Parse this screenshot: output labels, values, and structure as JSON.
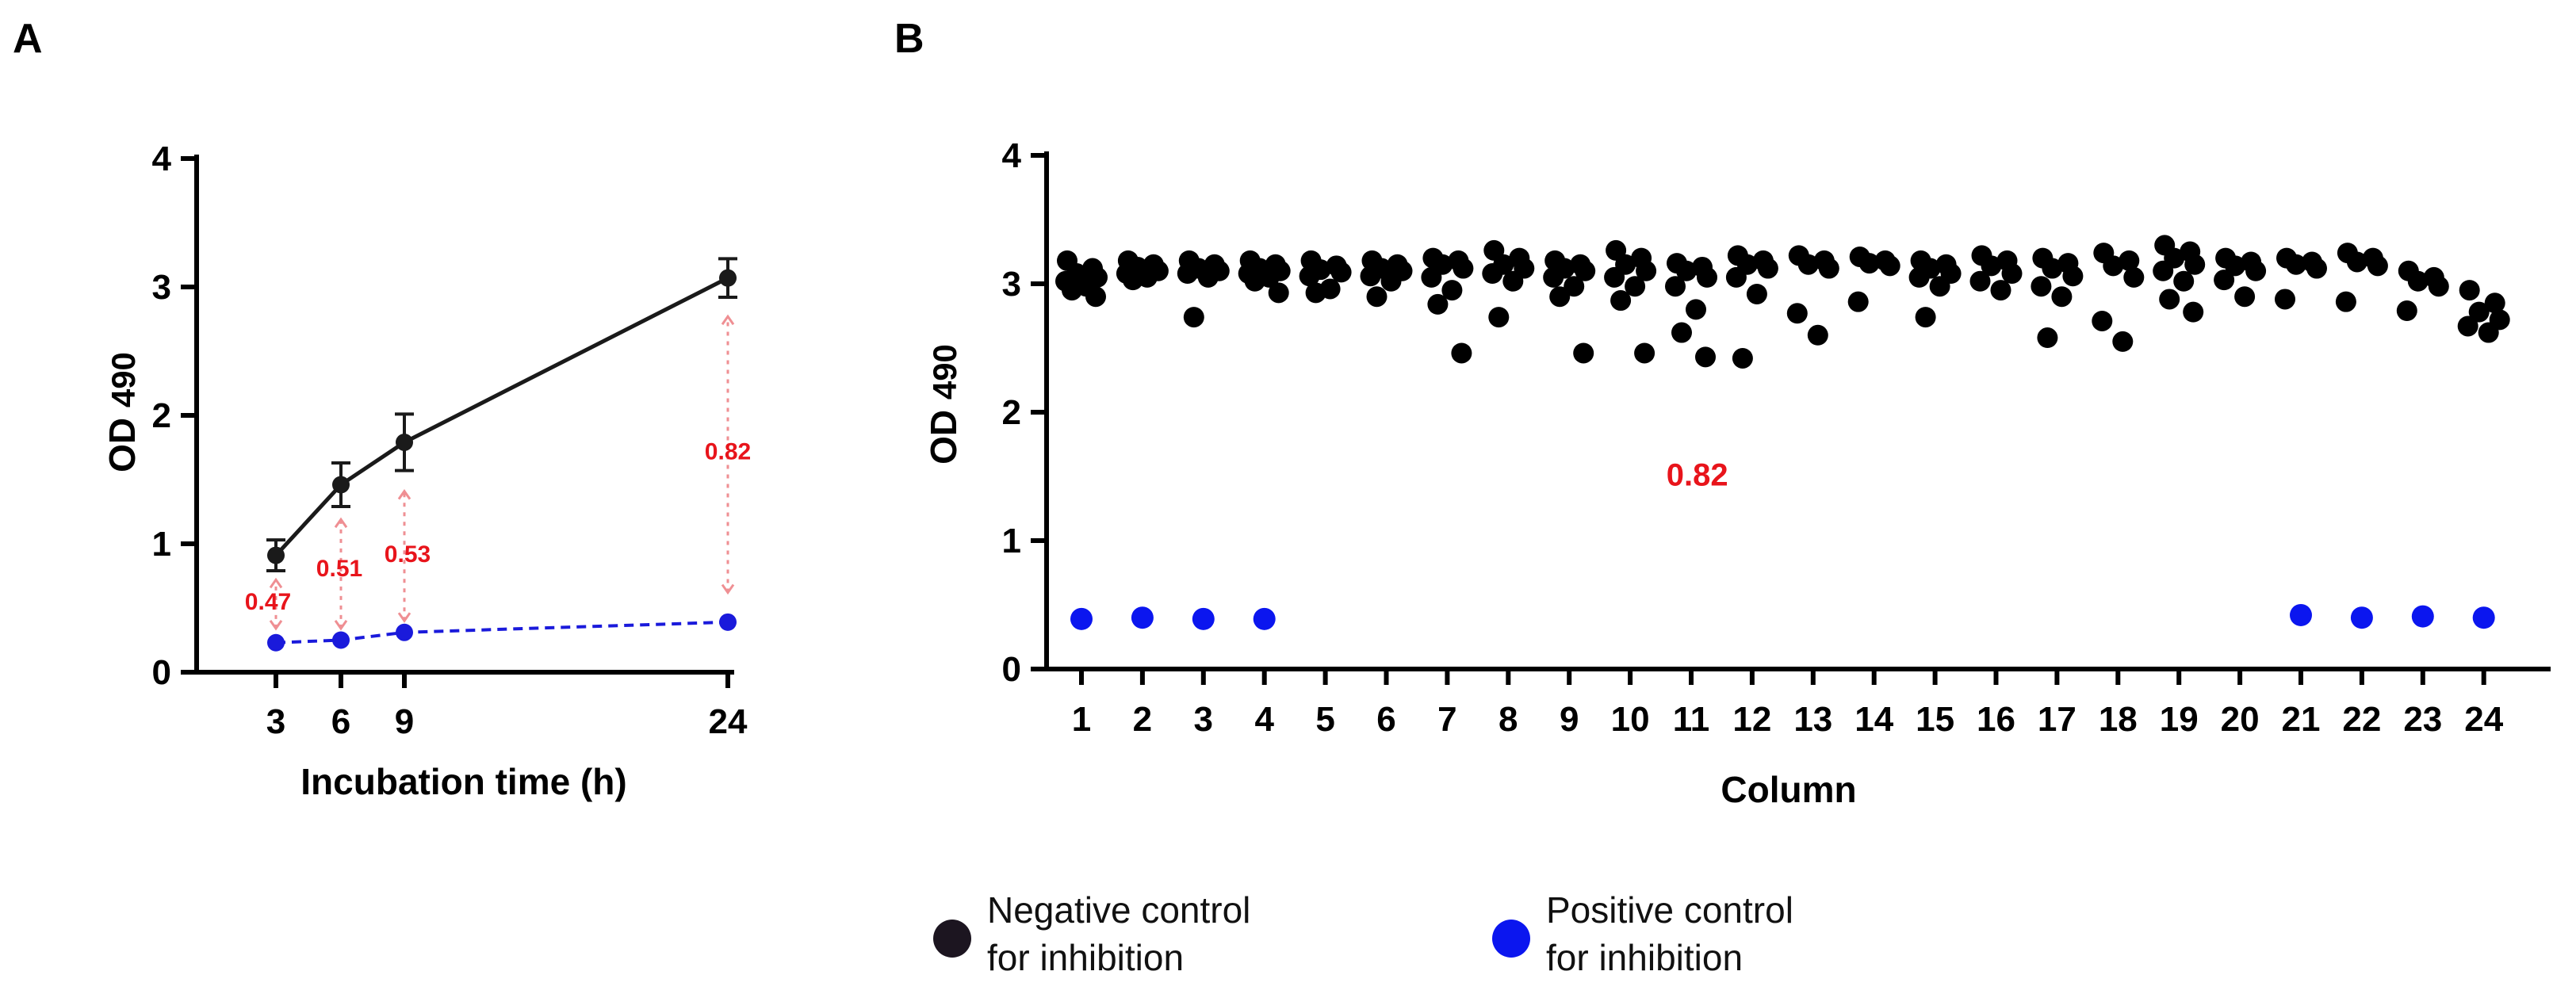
{
  "chart_data": [
    {
      "panel": "A",
      "type": "line",
      "xlabel": "Incubation time (h)",
      "ylabel_main": "OD",
      "ylabel_sub": "490",
      "xlim": [
        0,
        24
      ],
      "ylim": [
        0,
        4
      ],
      "x_ticks": [
        3,
        6,
        9,
        24
      ],
      "y_ticks": [
        0,
        1,
        2,
        3,
        4
      ],
      "series": [
        {
          "name": "Negative control for inhibition",
          "color": "#1a1a1a",
          "dashed": false,
          "x": [
            3,
            6,
            9,
            24
          ],
          "y": [
            0.91,
            1.46,
            1.79,
            3.07
          ],
          "err": [
            0.12,
            0.17,
            0.22,
            0.15
          ]
        },
        {
          "name": "Positive control for inhibition",
          "color": "#1a1adb",
          "dashed": true,
          "x": [
            3,
            6,
            9,
            24
          ],
          "y": [
            0.23,
            0.25,
            0.31,
            0.39
          ],
          "err": [
            0,
            0,
            0,
            0
          ]
        }
      ],
      "annotations": [
        {
          "text": "0.47",
          "x": 3,
          "y_from": 0.34,
          "y_to": 0.72,
          "label_y": 0.55
        },
        {
          "text": "0.51",
          "x": 6,
          "y_from": 0.34,
          "y_to": 1.19,
          "label_y": 0.81
        },
        {
          "text": "0.53",
          "x": 9,
          "y_from": 0.4,
          "y_to": 1.41,
          "label_y": 0.92
        },
        {
          "text": "0.82",
          "x": 24,
          "y_from": 0.62,
          "y_to": 2.77,
          "label_y": 1.72
        }
      ]
    },
    {
      "panel": "B",
      "type": "scatter",
      "xlabel": "Column",
      "ylabel_main": "OD",
      "ylabel_sub": "490",
      "categories": [
        "1",
        "2",
        "3",
        "4",
        "5",
        "6",
        "7",
        "8",
        "9",
        "10",
        "11",
        "12",
        "13",
        "14",
        "15",
        "16",
        "17",
        "18",
        "19",
        "20",
        "21",
        "22",
        "23",
        "24"
      ],
      "ylim": [
        0,
        4
      ],
      "y_ticks": [
        0,
        1,
        2,
        3,
        4
      ],
      "annotation": {
        "text": "0.82",
        "category_pos": 11.1,
        "y": 1.43
      },
      "negative_values": [
        [
          3.18,
          3.12,
          3.08,
          3.05,
          3.02,
          2.98,
          2.95,
          2.9
        ],
        [
          3.18,
          3.15,
          3.13,
          3.1,
          3.08,
          3.05,
          3.03
        ],
        [
          3.18,
          3.15,
          3.12,
          3.1,
          3.08,
          3.05,
          2.74
        ],
        [
          3.18,
          3.15,
          3.12,
          3.1,
          3.08,
          3.05,
          3.02,
          2.93
        ],
        [
          3.18,
          3.14,
          3.11,
          3.09,
          3.06,
          2.96,
          2.93
        ],
        [
          3.18,
          3.15,
          3.12,
          3.1,
          3.06,
          3.02,
          2.9
        ],
        [
          3.2,
          3.18,
          3.15,
          3.12,
          3.05,
          2.95,
          2.84,
          2.46
        ],
        [
          3.26,
          3.2,
          3.15,
          3.12,
          3.08,
          3.02,
          2.74
        ],
        [
          3.18,
          3.15,
          3.12,
          3.1,
          3.05,
          2.98,
          2.9,
          2.46
        ],
        [
          3.26,
          3.2,
          3.15,
          3.1,
          3.05,
          2.98,
          2.87,
          2.46
        ],
        [
          3.16,
          3.13,
          3.1,
          3.05,
          2.98,
          2.8,
          2.62,
          2.43
        ],
        [
          3.22,
          3.18,
          3.15,
          3.12,
          3.05,
          2.92,
          2.42
        ],
        [
          3.22,
          3.18,
          3.15,
          3.12,
          2.77,
          2.6
        ],
        [
          3.21,
          3.18,
          3.16,
          3.14,
          2.86
        ],
        [
          3.18,
          3.15,
          3.12,
          3.08,
          3.05,
          2.98,
          2.74
        ],
        [
          3.22,
          3.18,
          3.14,
          3.08,
          3.02,
          2.95
        ],
        [
          3.2,
          3.16,
          3.12,
          3.06,
          2.98,
          2.9,
          2.58
        ],
        [
          3.24,
          3.18,
          3.14,
          3.05,
          2.71,
          2.55
        ],
        [
          3.3,
          3.25,
          3.2,
          3.15,
          3.1,
          3.02,
          2.88,
          2.78
        ],
        [
          3.2,
          3.17,
          3.14,
          3.1,
          3.03,
          2.9
        ],
        [
          3.2,
          3.17,
          3.15,
          3.12,
          2.88
        ],
        [
          3.24,
          3.2,
          3.17,
          3.14,
          2.86
        ],
        [
          3.1,
          3.05,
          3.02,
          2.98,
          2.79
        ],
        [
          2.95,
          2.85,
          2.78,
          2.72,
          2.67,
          2.62
        ]
      ],
      "positive_values": [
        0.39,
        0.4,
        0.39,
        0.39,
        null,
        null,
        null,
        null,
        null,
        null,
        null,
        null,
        null,
        null,
        null,
        null,
        null,
        null,
        null,
        null,
        0.42,
        0.4,
        0.41,
        0.4
      ]
    }
  ],
  "legend": {
    "items": [
      {
        "line1": "Negative control",
        "line2": "for inhibition",
        "color": "#1c1520"
      },
      {
        "line1": "Positive control",
        "line2": "for inhibition",
        "color": "#0b16ef"
      }
    ]
  }
}
